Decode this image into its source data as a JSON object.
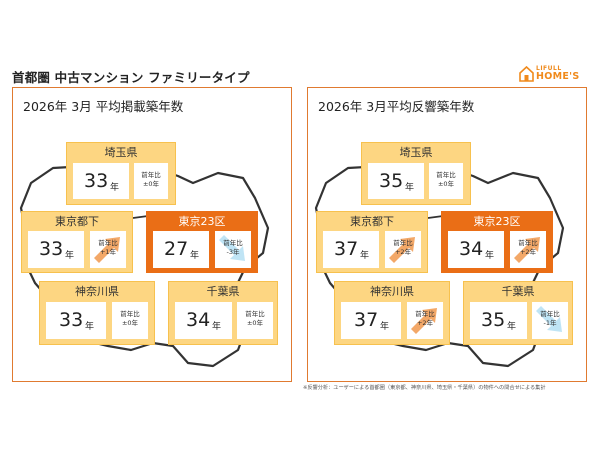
{
  "page_title": "首都圏 中古マンション ファミリータイプ",
  "logo": {
    "top": "LIFULL",
    "bottom": "HOME'S"
  },
  "footnote": "※反響分析：ユーザーによる首都圏（東京都、神奈川県、埼玉県・千葉県）の物件への問合せによる集計",
  "colors": {
    "accent": "#ea6e16",
    "card": "#fdd682",
    "up_arrow": "#f3a868",
    "down_arrow": "#bfe4f5"
  },
  "panels": [
    {
      "title": "2026年 3月  平均掲載築年数",
      "regions": {
        "saitama": {
          "name": "埼玉県",
          "value": "33",
          "unit": "年",
          "change_label": "前年比",
          "change": "±0年",
          "trend": "flat"
        },
        "tama": {
          "name": "東京都下",
          "value": "33",
          "unit": "年",
          "change_label": "前年比",
          "change": "+1年",
          "trend": "up"
        },
        "tokyo23": {
          "name": "東京23区",
          "value": "27",
          "unit": "年",
          "change_label": "前年比",
          "change": "-3年",
          "trend": "down"
        },
        "kanagawa": {
          "name": "神奈川県",
          "value": "33",
          "unit": "年",
          "change_label": "前年比",
          "change": "±0年",
          "trend": "flat"
        },
        "chiba": {
          "name": "千葉県",
          "value": "34",
          "unit": "年",
          "change_label": "前年比",
          "change": "±0年",
          "trend": "flat"
        }
      }
    },
    {
      "title": "2026年 3月平均反響築年数",
      "regions": {
        "saitama": {
          "name": "埼玉県",
          "value": "35",
          "unit": "年",
          "change_label": "前年比",
          "change": "±0年",
          "trend": "flat"
        },
        "tama": {
          "name": "東京都下",
          "value": "37",
          "unit": "年",
          "change_label": "前年比",
          "change": "+2年",
          "trend": "up"
        },
        "tokyo23": {
          "name": "東京23区",
          "value": "34",
          "unit": "年",
          "change_label": "前年比",
          "change": "+2年",
          "trend": "up"
        },
        "kanagawa": {
          "name": "神奈川県",
          "value": "37",
          "unit": "年",
          "change_label": "前年比",
          "change": "+2年",
          "trend": "up"
        },
        "chiba": {
          "name": "千葉県",
          "value": "35",
          "unit": "年",
          "change_label": "前年比",
          "change": "-1年",
          "trend": "down"
        }
      }
    }
  ]
}
